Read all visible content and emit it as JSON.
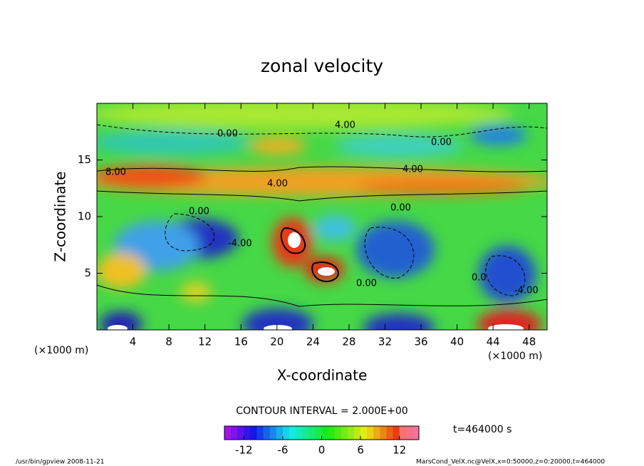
{
  "chart_data": {
    "type": "contour",
    "title": "zonal velocity",
    "x_label": "X-coordinate",
    "y_label": "Z-coordinate",
    "x_unit": "(×1000 m)",
    "y_unit": "(×1000 m)",
    "xlim": [
      0,
      50
    ],
    "ylim": [
      0,
      20
    ],
    "xticks": [
      4,
      8,
      12,
      16,
      20,
      24,
      28,
      32,
      36,
      40,
      44,
      48
    ],
    "yticks": [
      5,
      10,
      15
    ],
    "contour_interval": "CONTOUR INTERVAL = 2.000E+00",
    "time": "t=464000 s",
    "contour_labels": [
      "8.00",
      "0.00",
      "4.00",
      "0.00",
      "4.00",
      "4.00",
      "0.00",
      "-4.00",
      "0.00",
      "0.00",
      "-4.00",
      "0.0"
    ],
    "colorbar": {
      "lim": [
        -15,
        15
      ],
      "ticks": [
        -12,
        -6,
        0,
        6,
        12
      ]
    },
    "footer_left": "/usr/bin/gpview  2008-11-21",
    "footer_right": "MarsCond_VelX.nc@VelX,x=0:50000,z=0:20000,t=464000"
  }
}
